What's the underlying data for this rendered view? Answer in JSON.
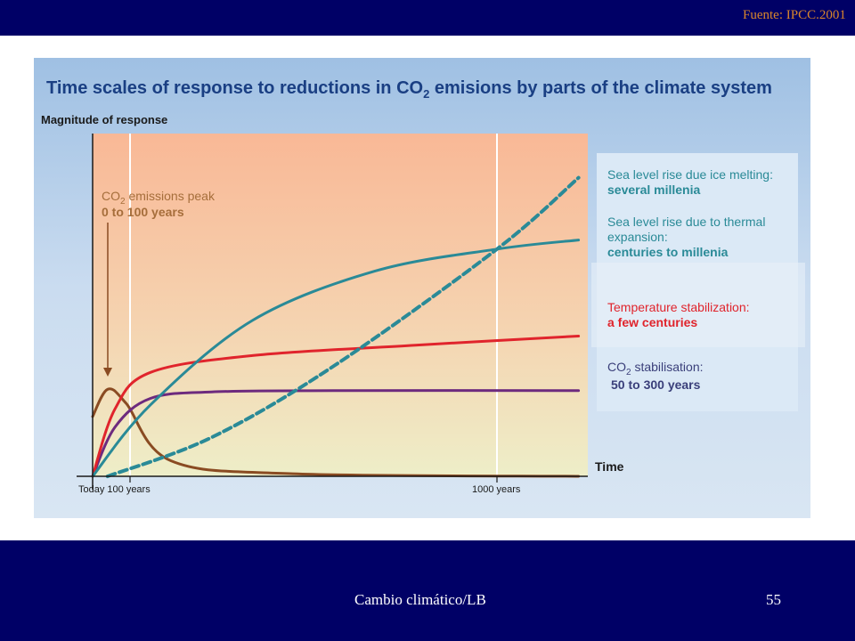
{
  "slide": {
    "source": "Fuente: IPCC.2001",
    "footer": "Cambio climático/LB",
    "page_number": "55"
  },
  "chart_data": {
    "type": "line",
    "title_main": "Time scales of response to reductions in CO",
    "title_sub": "2",
    "title_rest": " emisions by parts of the climate system",
    "ylabel": "Magnitude of response",
    "xlabel": "Time",
    "x_ticks": [
      "Today 100 years",
      "1000  years"
    ],
    "annotation": {
      "line1_a": "CO",
      "line1_sub": "2",
      "line1_b": " emissions peak",
      "line2": "0 to 100 years"
    },
    "legend": [
      {
        "label": "Sea level rise due ice melting:",
        "detail": "several millenia",
        "color": "#2a8a97"
      },
      {
        "label": "Sea level rise due to thermal",
        "label2": "expansion:",
        "detail": "centuries to millenia",
        "color": "#2a8a97"
      },
      {
        "label": "Temperature stabilization:",
        "detail": "a few centuries",
        "color": "#e0242c"
      },
      {
        "label_a": "CO",
        "label_sub": "2",
        "label_b": " stabilisation:",
        "detail": "50 to 300 years",
        "color": "#3a3f7a"
      }
    ],
    "series_colors": {
      "co2_emissions": "#8a4b22",
      "co2_concentration": "#6d2a7e",
      "temperature": "#e0242c",
      "thermal_expansion": "#2a8a97",
      "ice_melting": "#2a8a97"
    },
    "series": [
      {
        "key": "co2_emissions",
        "style": "solid",
        "points": [
          [
            0,
            0.46
          ],
          [
            40,
            0.67
          ],
          [
            90,
            0.56
          ],
          [
            200,
            0.12
          ],
          [
            500,
            0.02
          ],
          [
            1200,
            0.0
          ]
        ]
      },
      {
        "key": "co2_concentration",
        "style": "solid",
        "points": [
          [
            0,
            0.0
          ],
          [
            60,
            0.38
          ],
          [
            150,
            0.6
          ],
          [
            300,
            0.65
          ],
          [
            600,
            0.66
          ],
          [
            1200,
            0.66
          ]
        ]
      },
      {
        "key": "temperature",
        "style": "solid",
        "points": [
          [
            0,
            0.0
          ],
          [
            60,
            0.52
          ],
          [
            150,
            0.8
          ],
          [
            400,
            0.93
          ],
          [
            800,
            1.01
          ],
          [
            1200,
            1.08
          ]
        ]
      },
      {
        "key": "thermal_expansion",
        "style": "solid",
        "points": [
          [
            0,
            0.0
          ],
          [
            150,
            0.55
          ],
          [
            400,
            1.2
          ],
          [
            700,
            1.58
          ],
          [
            1000,
            1.75
          ],
          [
            1200,
            1.82
          ]
        ]
      },
      {
        "key": "ice_melting",
        "style": "dashed",
        "points": [
          [
            40,
            0.0
          ],
          [
            300,
            0.3
          ],
          [
            600,
            0.85
          ],
          [
            1000,
            1.75
          ],
          [
            1200,
            2.3
          ]
        ]
      }
    ],
    "xlim": [
      0,
      1200
    ],
    "ylim": [
      0,
      2.4
    ],
    "x_tick_values": [
      100,
      1000
    ]
  }
}
